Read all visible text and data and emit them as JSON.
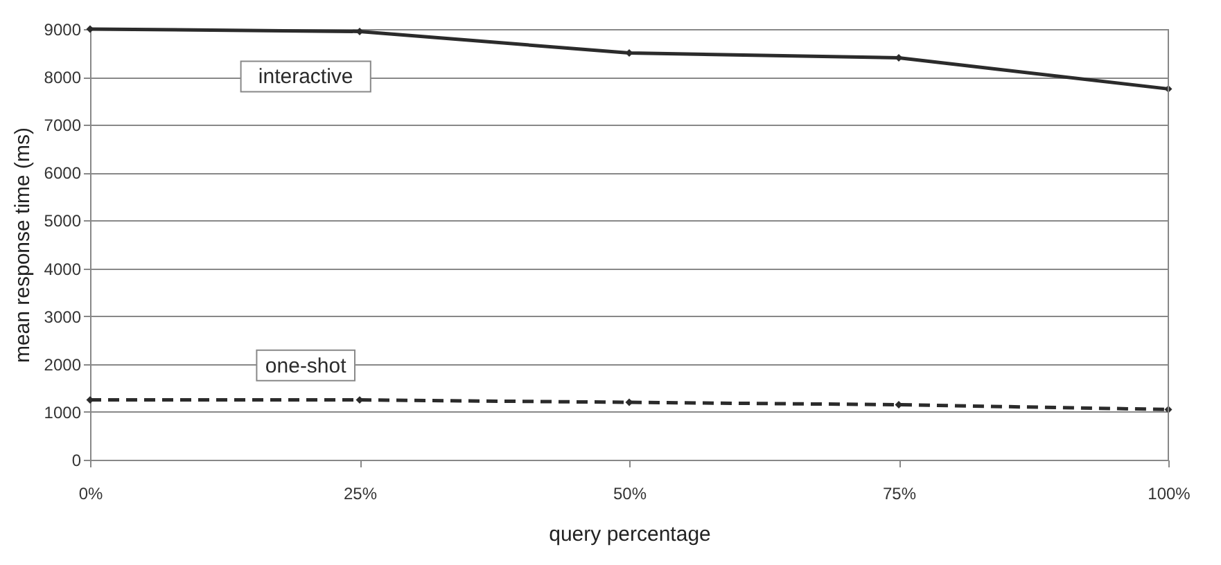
{
  "chart_data": {
    "type": "line",
    "xlabel": "query percentage",
    "ylabel": "mean response time (ms)",
    "x": [
      0,
      25,
      50,
      75,
      100
    ],
    "series": [
      {
        "name": "interactive",
        "color": "#2b2b2b",
        "values": [
          9000,
          8950,
          8500,
          8400,
          7750
        ],
        "line_style": "solid"
      },
      {
        "name": "one-shot",
        "color": "#2b2b2b",
        "values": [
          1250,
          1250,
          1200,
          1150,
          1050
        ],
        "line_style": "dashed"
      }
    ],
    "xlim": [
      0,
      100
    ],
    "xticks": [
      {
        "value": 0,
        "label": "0%"
      },
      {
        "value": 25,
        "label": "25%"
      },
      {
        "value": 50,
        "label": "50%"
      },
      {
        "value": 75,
        "label": "75%"
      },
      {
        "value": 100,
        "label": "100%"
      }
    ],
    "ylim": [
      0,
      9000
    ],
    "yticks": [
      0,
      1000,
      2000,
      3000,
      4000,
      5000,
      6000,
      7000,
      8000,
      9000
    ],
    "grid": "y",
    "marker": "diamond"
  }
}
